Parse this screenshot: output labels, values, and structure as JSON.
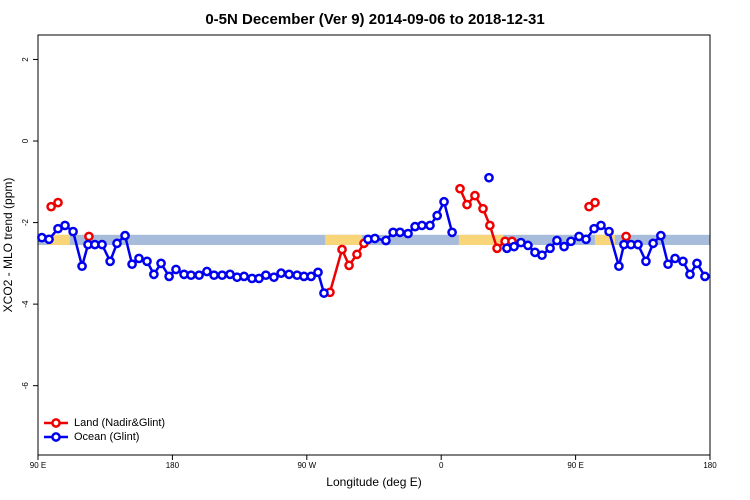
{
  "chart_data": {
    "type": "line",
    "title": "0-5N December (Ver 9)   2014-09-06 to 2018-12-31",
    "x_label": "Longitude (deg E)",
    "y_label": "XCO2 - MLO trend (ppm)",
    "xlim": [
      90,
      540
    ],
    "ylim": [
      -7.7,
      2.6
    ],
    "xticks": [
      {
        "value": 90,
        "label": "90 E"
      },
      180,
      {
        "value": 270,
        "label": "90 W"
      },
      {
        "value": 360,
        "label": "0"
      },
      {
        "value": 450,
        "label": "90 E"
      },
      {
        "value": 540,
        "label": "180"
      }
    ],
    "yticks": [
      -6,
      -4,
      -2,
      0,
      2
    ],
    "legend": "bottom-left",
    "band": {
      "ylim": [
        -2.55,
        -2.3
      ],
      "color": "#a7bcdb",
      "land_color": "#f9d57a",
      "land_ranges": [
        [
          96.8,
          111.4
        ],
        [
          282.3,
          307.0
        ],
        [
          371.8,
          401.9
        ],
        [
          463.0,
          476.4
        ]
      ]
    },
    "series": [
      {
        "name": "Land (Nadir&Glint)",
        "color": "#ee0000",
        "x": [
          98.8,
          103.4,
          null,
          124.1,
          null,
          285.5,
          293.6,
          298.3,
          303.6,
          308.3,
          null,
          372.6,
          377.3,
          382.6,
          388.0,
          392.6,
          397.4,
          402.8,
          407.4,
          null,
          459.0,
          463.0,
          null,
          483.8
        ],
        "values": [
          -1.61,
          -1.51,
          null,
          -2.34,
          null,
          -3.71,
          -2.66,
          -3.05,
          -2.78,
          -2.51,
          null,
          -1.17,
          -1.56,
          -1.34,
          -1.66,
          -2.07,
          -2.63,
          -2.46,
          -2.46,
          null,
          -1.61,
          -1.51,
          null,
          -2.34
        ]
      },
      {
        "name": "Ocean (Glint)",
        "color": "#0000ee",
        "x": [
          92.6,
          97.4,
          103.4,
          108.1,
          113.5,
          119.5,
          123.5,
          128.1,
          132.9,
          138.3,
          142.9,
          148.3,
          153.0,
          157.6,
          163.0,
          167.6,
          172.4,
          177.8,
          182.4,
          187.8,
          192.5,
          197.9,
          203.1,
          207.9,
          213.3,
          218.6,
          223.3,
          228.0,
          233.3,
          238.0,
          242.6,
          248.0,
          252.8,
          258.1,
          263.5,
          268.1,
          272.9,
          277.5,
          281.5,
          null,
          311.0,
          315.6,
          323.0,
          327.8,
          332.4,
          337.8,
          342.5,
          347.1,
          352.5,
          357.3,
          361.9,
          367.3,
          null,
          392.0,
          null,
          404.0,
          408.8,
          413.4,
          418.1,
          422.8,
          427.5,
          432.9,
          437.5,
          442.3,
          446.9,
          452.3,
          457.0,
          462.4,
          467.0,
          472.4,
          479.0,
          482.4,
          487.1,
          491.8,
          497.1,
          501.9,
          507.1,
          511.9,
          516.6,
          521.9,
          526.6,
          531.3,
          536.6
        ],
        "values": [
          -2.37,
          -2.41,
          -2.15,
          -2.07,
          -2.22,
          -3.07,
          -2.54,
          -2.54,
          -2.54,
          -2.95,
          -2.51,
          -2.32,
          -3.02,
          -2.88,
          -2.95,
          -3.27,
          -3.0,
          -3.32,
          -3.15,
          -3.27,
          -3.29,
          -3.29,
          -3.2,
          -3.29,
          -3.29,
          -3.27,
          -3.34,
          -3.32,
          -3.37,
          -3.37,
          -3.29,
          -3.34,
          -3.24,
          -3.27,
          -3.29,
          -3.32,
          -3.32,
          -3.22,
          -3.73,
          null,
          -2.41,
          -2.39,
          -2.44,
          -2.24,
          -2.24,
          -2.27,
          -2.1,
          -2.07,
          -2.07,
          -1.83,
          -1.49,
          -2.24,
          null,
          -0.9,
          null,
          -2.63,
          -2.59,
          -2.49,
          -2.56,
          -2.73,
          -2.8,
          -2.63,
          -2.44,
          -2.59,
          -2.46,
          -2.34,
          -2.41,
          -2.15,
          -2.07,
          -2.22,
          -3.07,
          -2.54,
          -2.54,
          -2.54,
          -2.95,
          -2.51,
          -2.32,
          -3.02,
          -2.88,
          -2.95,
          -3.27,
          -3.0,
          -3.32
        ]
      }
    ]
  }
}
